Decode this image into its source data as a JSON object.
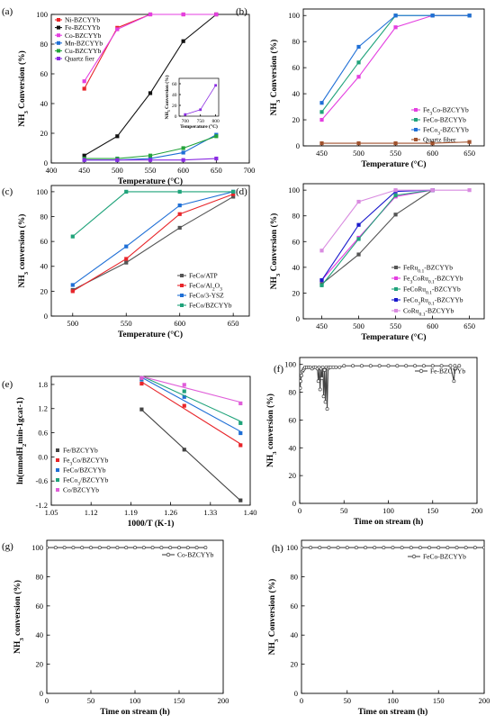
{
  "figure": {
    "panels": [
      {
        "id": "a",
        "letter": "(a)"
      },
      {
        "id": "b",
        "letter": "(b)"
      },
      {
        "id": "c",
        "letter": "(c)"
      },
      {
        "id": "d",
        "letter": "(d)"
      },
      {
        "id": "e",
        "letter": "(e)"
      },
      {
        "id": "f",
        "letter": "(f)"
      },
      {
        "id": "g",
        "letter": "(g)"
      },
      {
        "id": "h",
        "letter": "(h)"
      }
    ]
  },
  "chart_data": [
    {
      "id": "a",
      "type": "line",
      "xlabel": "Temperature (°C)",
      "ylabel": "NH3 Conversion (%)",
      "xlim": [
        400,
        700
      ],
      "ylim": [
        0,
        100
      ],
      "xticks": [
        400,
        450,
        500,
        550,
        600,
        650,
        700
      ],
      "yticks": [
        0,
        20,
        40,
        60,
        80,
        100
      ],
      "legend_position": "top-left",
      "series": [
        {
          "name": "Ni-BZCYYb",
          "color": "#e8252a",
          "marker": "square",
          "x": [
            450,
            500,
            550,
            600,
            650
          ],
          "y": [
            50,
            91,
            100,
            100,
            100
          ]
        },
        {
          "name": "Fe-BZCYYb",
          "color": "#111111",
          "marker": "square",
          "x": [
            450,
            500,
            550,
            600,
            650
          ],
          "y": [
            5,
            18,
            47,
            82,
            100
          ]
        },
        {
          "name": "Co-BZCYYb",
          "color": "#e43ee0",
          "marker": "square",
          "x": [
            450,
            500,
            550,
            600,
            650
          ],
          "y": [
            55,
            90,
            100,
            100,
            100
          ]
        },
        {
          "name": "Mn-BZCYYb",
          "color": "#1f6fd6",
          "marker": "square",
          "x": [
            450,
            500,
            550,
            600,
            650
          ],
          "y": [
            2,
            2,
            3,
            7,
            19
          ]
        },
        {
          "name": "Cu-BZCYYb",
          "color": "#23a33b",
          "marker": "square",
          "x": [
            450,
            500,
            550,
            600,
            650
          ],
          "y": [
            3,
            3,
            5,
            10,
            18
          ]
        },
        {
          "name": "Quartz fier",
          "color": "#8a2be2",
          "marker": "square",
          "x": [
            450,
            500,
            550,
            600,
            650
          ],
          "y": [
            2,
            2,
            2,
            2,
            3
          ]
        }
      ],
      "inset": {
        "xlabel": "Temperature (°C)",
        "ylabel": "NH3 Conversion (%)",
        "xlim": [
          680,
          810
        ],
        "ylim": [
          0,
          70
        ],
        "xticks": [
          700,
          750,
          800
        ],
        "yticks": [
          0,
          20,
          40,
          60
        ],
        "series": [
          {
            "name": "Quartz fier",
            "color": "#8a2be2",
            "marker": "square",
            "x": [
              700,
              750,
              800
            ],
            "y": [
              3,
              12,
              57
            ]
          }
        ]
      }
    },
    {
      "id": "b",
      "type": "line",
      "xlabel": "Temperature (°C)",
      "ylabel": "NH3 Conversion (%)",
      "xlim": [
        425,
        670
      ],
      "ylim": [
        0,
        105
      ],
      "xticks": [
        450,
        500,
        550,
        600,
        650
      ],
      "yticks": [
        0,
        20,
        40,
        60,
        80,
        100
      ],
      "legend_position": "bottom-right",
      "series": [
        {
          "name": "Fe3Co-BZCYYb",
          "color": "#e43ee0",
          "marker": "square",
          "x": [
            450,
            500,
            550,
            600,
            650
          ],
          "y": [
            20,
            53,
            91,
            100,
            100
          ]
        },
        {
          "name": "FeCo-BZCYYb",
          "color": "#1fa37a",
          "marker": "square",
          "x": [
            450,
            500,
            550,
            600,
            650
          ],
          "y": [
            26,
            64,
            100,
            100,
            100
          ]
        },
        {
          "name": "FeCo3-BZCYYb",
          "color": "#1f6fd6",
          "marker": "square",
          "x": [
            450,
            500,
            550,
            600,
            650
          ],
          "y": [
            33,
            76,
            100,
            100,
            100
          ]
        },
        {
          "name": "Quartz fiber",
          "color": "#a0522d",
          "marker": "square",
          "x": [
            450,
            500,
            550,
            600,
            650
          ],
          "y": [
            2,
            2,
            2,
            2,
            3
          ]
        }
      ]
    },
    {
      "id": "c",
      "type": "line",
      "xlabel": "Temperature (°C)",
      "ylabel": "NH3 conversion (%)",
      "xlim": [
        480,
        665
      ],
      "ylim": [
        0,
        105
      ],
      "xticks": [
        500,
        550,
        600,
        650
      ],
      "yticks": [
        0,
        20,
        40,
        60,
        80,
        100
      ],
      "legend_position": "bottom-right",
      "series": [
        {
          "name": "FeCo/ATP",
          "color": "#555555",
          "marker": "square",
          "x": [
            500,
            550,
            600,
            650
          ],
          "y": [
            21,
            43,
            71,
            96
          ]
        },
        {
          "name": "FeCo/Al2O3",
          "color": "#e8252a",
          "marker": "square",
          "x": [
            500,
            550,
            600,
            650
          ],
          "y": [
            20,
            46,
            82,
            98
          ]
        },
        {
          "name": "FeCo/3-YSZ",
          "color": "#1f6fd6",
          "marker": "square",
          "x": [
            500,
            550,
            600,
            650
          ],
          "y": [
            25,
            56,
            89,
            100
          ]
        },
        {
          "name": "FeCo/BZCYYb",
          "color": "#1fa37a",
          "marker": "square",
          "x": [
            500,
            550,
            600,
            650
          ],
          "y": [
            64,
            100,
            100,
            100
          ]
        }
      ]
    },
    {
      "id": "d",
      "type": "line",
      "xlabel": "Temperature (°C)",
      "ylabel": "NH3 Conversion (%)",
      "xlim": [
        425,
        670
      ],
      "ylim": [
        0,
        105
      ],
      "xticks": [
        450,
        500,
        550,
        600,
        650
      ],
      "yticks": [
        0,
        20,
        40,
        60,
        80,
        100
      ],
      "legend_position": "bottom-right",
      "series": [
        {
          "name": "FeRu0.1-BZCYYb",
          "color": "#555555",
          "marker": "square",
          "x": [
            450,
            500,
            550,
            600
          ],
          "y": [
            27,
            50,
            81,
            100
          ]
        },
        {
          "name": "Fe3CoRu0.1-BZCYYb",
          "color": "#e43ee0",
          "marker": "square",
          "x": [
            450,
            500,
            550,
            600
          ],
          "y": [
            30,
            63,
            95,
            100
          ]
        },
        {
          "name": "FeCoRu0.1-BZCYYb",
          "color": "#1fa37a",
          "marker": "square",
          "x": [
            450,
            500,
            550,
            600
          ],
          "y": [
            26,
            62,
            96,
            100
          ]
        },
        {
          "name": "FeCo3Ru0.1-BZCYYb",
          "color": "#1a1acc",
          "marker": "square",
          "x": [
            450,
            500,
            550,
            600
          ],
          "y": [
            30,
            73,
            99,
            100
          ]
        },
        {
          "name": "CoRu0.1-BZCYYb",
          "color": "#d98be0",
          "marker": "square",
          "x": [
            450,
            500,
            550,
            600,
            650
          ],
          "y": [
            53,
            91,
            100,
            100,
            100
          ]
        }
      ]
    },
    {
      "id": "e",
      "type": "scatter",
      "xlabel": "1000/T (K-1)",
      "ylabel": "ln(mmolH2min-1gcat-1)",
      "xlim": [
        1.05,
        1.4
      ],
      "ylim": [
        -1.2,
        2.0
      ],
      "xticks": [
        1.05,
        1.12,
        1.19,
        1.26,
        1.33,
        1.4
      ],
      "xtick_labels": [
        "1.05",
        "1.12",
        "1.19",
        "1.26",
        "1.33",
        "1.40"
      ],
      "yticks": [
        -1.2,
        -0.6,
        0.0,
        0.6,
        1.2,
        1.8
      ],
      "ytick_labels": [
        "-1.2",
        "-0.6",
        "0.0",
        "0.6",
        "1.2",
        "1.8"
      ],
      "legend_position": "bottom-left",
      "series": [
        {
          "name": "Fe/BZCYYb",
          "color": "#444444",
          "marker": "square",
          "x": [
            1.209,
            1.284,
            1.383
          ],
          "y": [
            1.18,
            0.18,
            -1.08
          ]
        },
        {
          "name": "Fe3Co/BZCYYb",
          "color": "#e8252a",
          "marker": "square",
          "x": [
            1.209,
            1.284,
            1.383
          ],
          "y": [
            1.82,
            1.27,
            0.29
          ]
        },
        {
          "name": "FeCo/BZCYYb",
          "color": "#1f6fd6",
          "marker": "square",
          "x": [
            1.209,
            1.284,
            1.383
          ],
          "y": [
            1.92,
            1.49,
            0.59
          ]
        },
        {
          "name": "FeCo3/BZCYYb",
          "color": "#1fa37a",
          "marker": "square",
          "x": [
            1.209,
            1.284,
            1.383
          ],
          "y": [
            1.95,
            1.63,
            0.84
          ]
        },
        {
          "name": "Co/BZCYYb",
          "color": "#e05ed9",
          "marker": "square",
          "x": [
            1.209,
            1.284,
            1.383
          ],
          "y": [
            1.96,
            1.79,
            1.33
          ]
        }
      ]
    },
    {
      "id": "f",
      "type": "line",
      "xlabel": "Time on stream (h)",
      "ylabel": "NH3 conversion (%)",
      "xlim": [
        0,
        200
      ],
      "ylim": [
        0,
        105
      ],
      "xticks": [
        0,
        50,
        100,
        150,
        200
      ],
      "yticks": [
        0,
        20,
        40,
        60,
        80,
        100
      ],
      "legend_position": "top-right",
      "series": [
        {
          "name": "Fe-BZCYYb",
          "color": "#444444",
          "marker": "circle",
          "x": [
            0.5,
            1,
            2,
            3,
            4,
            5,
            6,
            8,
            10,
            12,
            14,
            16,
            18,
            20,
            21,
            22,
            23,
            24,
            25,
            26,
            27,
            28,
            29,
            30,
            31,
            32,
            33,
            35,
            38,
            41,
            45,
            50,
            60,
            70,
            80,
            90,
            100,
            110,
            120,
            130,
            140,
            150,
            160,
            170,
            174,
            175,
            176,
            180
          ],
          "y": [
            83,
            88,
            92,
            95,
            96,
            97,
            98,
            98,
            98,
            98,
            97,
            98,
            98,
            97,
            88,
            98,
            82,
            97,
            90,
            98,
            77,
            96,
            73,
            98,
            68,
            97,
            98,
            98,
            98,
            98,
            98,
            99,
            99,
            99,
            99,
            99,
            99,
            99,
            99,
            99,
            99,
            99,
            99,
            99,
            88,
            99,
            97,
            99
          ]
        }
      ]
    },
    {
      "id": "g",
      "type": "line",
      "xlabel": "Time on stream (h)",
      "ylabel": "NH3 conversion (%)",
      "xlim": [
        0,
        200
      ],
      "ylim": [
        0,
        105
      ],
      "xticks": [
        0,
        50,
        100,
        150,
        200
      ],
      "yticks": [
        0,
        20,
        40,
        60,
        80,
        100
      ],
      "legend_position": "top-right",
      "series": [
        {
          "name": "Co-BZCYYb",
          "color": "#444444",
          "marker": "circle",
          "x": [
            0,
            10,
            20,
            30,
            40,
            50,
            60,
            70,
            80,
            90,
            100,
            110,
            120,
            130,
            140,
            150,
            160,
            170,
            180
          ],
          "y": [
            100,
            100,
            100,
            100,
            100,
            100,
            100,
            100,
            100,
            100,
            100,
            100,
            100,
            100,
            100,
            100,
            100,
            100,
            100
          ]
        }
      ]
    },
    {
      "id": "h",
      "type": "line",
      "xlabel": "Time on stream (h)",
      "ylabel": "NH3 Conversion (%)",
      "xlim": [
        0,
        200
      ],
      "ylim": [
        0,
        105
      ],
      "xticks": [
        0,
        50,
        100,
        150,
        200
      ],
      "yticks": [
        0,
        20,
        40,
        60,
        80,
        100
      ],
      "legend_position": "top-right",
      "series": [
        {
          "name": "FeCo-BZCYYb",
          "color": "#444444",
          "marker": "circle",
          "x": [
            0,
            10,
            20,
            30,
            40,
            50,
            60,
            70,
            80,
            90,
            100,
            110,
            120,
            130,
            140,
            150,
            160,
            170,
            180,
            190,
            200
          ],
          "y": [
            100,
            100,
            100,
            100,
            100,
            100,
            100,
            100,
            100,
            100,
            100,
            100,
            100,
            100,
            100,
            100,
            100,
            100,
            100,
            100,
            100
          ]
        }
      ]
    }
  ]
}
